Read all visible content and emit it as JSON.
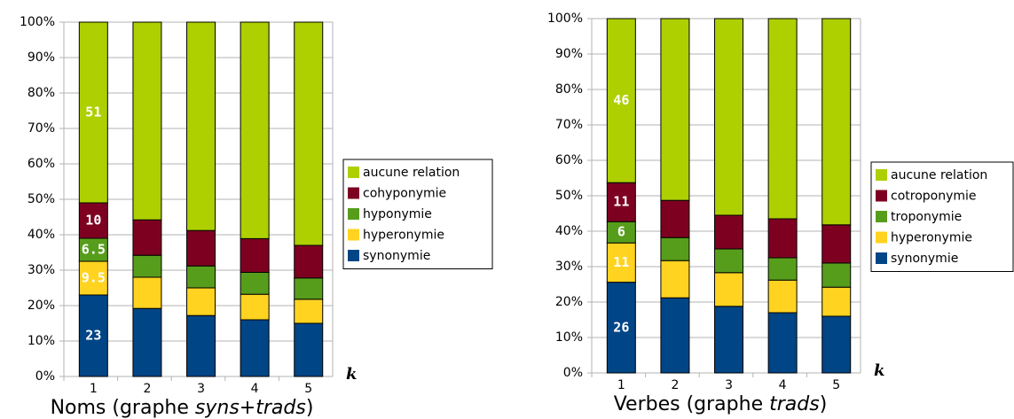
{
  "chart_data": [
    {
      "type": "stacked_bar",
      "title": [
        {
          "text": "Noms (graphe "
        },
        {
          "text": "syns",
          "italic": true
        },
        {
          "text": "+"
        },
        {
          "text": "trads",
          "italic": true
        },
        {
          "text": ")"
        }
      ],
      "x_label": "k",
      "categories": [
        "1",
        "2",
        "3",
        "4",
        "5"
      ],
      "ylim": [
        0,
        100
      ],
      "yticks": [
        {
          "value": 0,
          "label": "0%"
        },
        {
          "value": 10,
          "label": "10%"
        },
        {
          "value": 20,
          "label": "20%"
        },
        {
          "value": 30,
          "label": "30%"
        },
        {
          "value": 40,
          "label": "40%"
        },
        {
          "value": 50,
          "label": "50%"
        },
        {
          "value": 60,
          "label": "60%"
        },
        {
          "value": 70,
          "label": "70%"
        },
        {
          "value": 80,
          "label": "80%"
        },
        {
          "value": 90,
          "label": "90%"
        },
        {
          "value": 100,
          "label": "100%"
        }
      ],
      "grid": true,
      "legend": "right",
      "series": [
        {
          "name": "synonymie",
          "color": "#004586",
          "values": [
            23,
            19.2,
            17.2,
            16,
            15
          ],
          "value_labels": [
            "23",
            null,
            null,
            null,
            null
          ]
        },
        {
          "name": "hyperonymie",
          "color": "#ffd320",
          "values": [
            9.5,
            8.8,
            7.8,
            7.2,
            6.8
          ],
          "value_labels": [
            "9.5",
            null,
            null,
            null,
            null
          ]
        },
        {
          "name": "hyponymie",
          "color": "#579d1c",
          "values": [
            6.5,
            6.2,
            6.2,
            6.2,
            6
          ],
          "value_labels": [
            "6.5",
            null,
            null,
            null,
            null
          ]
        },
        {
          "name": "cohyponymie",
          "color": "#7e0021",
          "values": [
            10,
            10,
            10,
            9.5,
            9.2
          ],
          "value_labels": [
            "10",
            null,
            null,
            null,
            null
          ]
        },
        {
          "name": "aucune relation",
          "color": "#aecf00",
          "values": [
            51,
            55.8,
            58.8,
            61.1,
            63
          ],
          "value_labels": [
            "51",
            null,
            null,
            null,
            null
          ]
        }
      ]
    },
    {
      "type": "stacked_bar",
      "title": [
        {
          "text": "Verbes (graphe "
        },
        {
          "text": "trads",
          "italic": true
        },
        {
          "text": ")"
        }
      ],
      "x_label": "k",
      "categories": [
        "1",
        "2",
        "3",
        "4",
        "5"
      ],
      "ylim": [
        0,
        100
      ],
      "yticks": [
        {
          "value": 0,
          "label": "0%"
        },
        {
          "value": 10,
          "label": "10%"
        },
        {
          "value": 20,
          "label": "20%"
        },
        {
          "value": 30,
          "label": "30%"
        },
        {
          "value": 40,
          "label": "40%"
        },
        {
          "value": 50,
          "label": "50%"
        },
        {
          "value": 60,
          "label": "60%"
        },
        {
          "value": 70,
          "label": "70%"
        },
        {
          "value": 80,
          "label": "80%"
        },
        {
          "value": 90,
          "label": "90%"
        },
        {
          "value": 100,
          "label": "100%"
        }
      ],
      "grid": true,
      "legend": "right",
      "series": [
        {
          "name": "synonymie",
          "color": "#004586",
          "values": [
            25.6,
            21.2,
            18.8,
            17,
            16
          ],
          "value_labels": [
            "26",
            null,
            null,
            null,
            null
          ]
        },
        {
          "name": "hyperonymie",
          "color": "#ffd320",
          "values": [
            11.1,
            10.5,
            9.5,
            9.2,
            8.2
          ],
          "value_labels": [
            "11",
            null,
            null,
            null,
            null
          ]
        },
        {
          "name": "troponymie",
          "color": "#579d1c",
          "values": [
            6,
            6.5,
            6.7,
            6.3,
            6.8
          ],
          "value_labels": [
            "6",
            null,
            null,
            null,
            null
          ]
        },
        {
          "name": "cotroponymie",
          "color": "#7e0021",
          "values": [
            11,
            10.5,
            9.5,
            11,
            10.8
          ],
          "value_labels": [
            "11",
            null,
            null,
            null,
            null
          ]
        },
        {
          "name": "aucune relation",
          "color": "#aecf00",
          "values": [
            46.3,
            51.3,
            55.5,
            56.5,
            58.2
          ],
          "value_labels": [
            "46",
            null,
            null,
            null,
            null
          ]
        }
      ]
    }
  ]
}
